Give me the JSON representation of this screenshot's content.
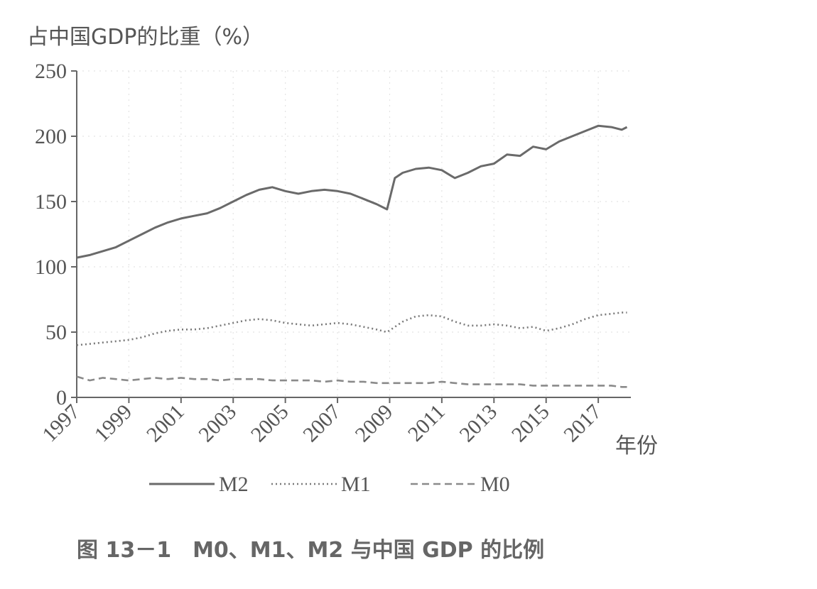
{
  "chart_data": {
    "type": "line",
    "ylabel": "占中国GDP的比重（%）",
    "xlabel": "年份",
    "caption": "图 13－1　M0、M1、M2 与中国 GDP 的比例",
    "x_range": [
      1997,
      2018.25
    ],
    "y_range": [
      0,
      250
    ],
    "y_ticks": [
      0,
      50,
      100,
      150,
      200,
      250
    ],
    "x_ticks": [
      1997,
      1999,
      2001,
      2003,
      2005,
      2007,
      2009,
      2011,
      2013,
      2015,
      2017
    ],
    "grid": true,
    "legend_position": "bottom",
    "series": [
      {
        "name": "M2",
        "style": "solid",
        "color": "#6a6a6a",
        "x": [
          1997.0,
          1997.5,
          1998.0,
          1998.5,
          1999.0,
          1999.5,
          2000.0,
          2000.5,
          2001.0,
          2001.5,
          2002.0,
          2002.5,
          2003.0,
          2003.5,
          2004.0,
          2004.5,
          2005.0,
          2005.5,
          2006.0,
          2006.5,
          2007.0,
          2007.5,
          2008.0,
          2008.5,
          2008.9,
          2009.2,
          2009.5,
          2010.0,
          2010.5,
          2011.0,
          2011.5,
          2012.0,
          2012.5,
          2013.0,
          2013.5,
          2014.0,
          2014.5,
          2015.0,
          2015.5,
          2016.0,
          2016.5,
          2017.0,
          2017.5,
          2017.9,
          2018.1
        ],
        "values": [
          107,
          109,
          112,
          115,
          120,
          125,
          130,
          134,
          137,
          139,
          141,
          145,
          150,
          155,
          159,
          161,
          158,
          156,
          158,
          159,
          158,
          156,
          152,
          148,
          144,
          168,
          172,
          175,
          176,
          174,
          168,
          172,
          177,
          179,
          186,
          185,
          192,
          190,
          196,
          200,
          204,
          208,
          207,
          205,
          207
        ]
      },
      {
        "name": "M1",
        "style": "dotted",
        "color": "#7a7a7a",
        "x": [
          1997.0,
          1997.5,
          1998.0,
          1998.5,
          1999.0,
          1999.5,
          2000.0,
          2000.5,
          2001.0,
          2001.5,
          2002.0,
          2002.5,
          2003.0,
          2003.5,
          2004.0,
          2004.5,
          2005.0,
          2005.5,
          2006.0,
          2006.5,
          2007.0,
          2007.5,
          2008.0,
          2008.5,
          2008.9,
          2009.5,
          2010.0,
          2010.5,
          2011.0,
          2011.5,
          2012.0,
          2012.5,
          2013.0,
          2013.5,
          2014.0,
          2014.5,
          2015.0,
          2015.5,
          2016.0,
          2016.5,
          2017.0,
          2017.5,
          2017.9,
          2018.1
        ],
        "values": [
          40,
          41,
          42,
          43,
          44,
          46,
          49,
          51,
          52,
          52,
          53,
          55,
          57,
          59,
          60,
          59,
          57,
          56,
          55,
          56,
          57,
          56,
          54,
          52,
          50,
          58,
          62,
          63,
          62,
          58,
          55,
          55,
          56,
          55,
          53,
          54,
          51,
          53,
          56,
          60,
          63,
          64,
          65,
          65
        ]
      },
      {
        "name": "M0",
        "style": "dashed",
        "color": "#8a8a8a",
        "x": [
          1997.0,
          1997.5,
          1998.0,
          1998.5,
          1999.0,
          1999.5,
          2000.0,
          2000.5,
          2001.0,
          2001.5,
          2002.0,
          2002.5,
          2003.0,
          2003.5,
          2004.0,
          2004.5,
          2005.0,
          2005.5,
          2006.0,
          2006.5,
          2007.0,
          2007.5,
          2008.0,
          2008.5,
          2009.0,
          2009.5,
          2010.0,
          2010.5,
          2011.0,
          2011.5,
          2012.0,
          2012.5,
          2013.0,
          2013.5,
          2014.0,
          2014.5,
          2015.0,
          2015.5,
          2016.0,
          2016.5,
          2017.0,
          2017.5,
          2017.9,
          2018.1
        ],
        "values": [
          16,
          13,
          15,
          14,
          13,
          14,
          15,
          14,
          15,
          14,
          14,
          13,
          14,
          14,
          14,
          13,
          13,
          13,
          13,
          12,
          13,
          12,
          12,
          11,
          11,
          11,
          11,
          11,
          12,
          11,
          10,
          10,
          10,
          10,
          10,
          9,
          9,
          9,
          9,
          9,
          9,
          9,
          8,
          8
        ]
      }
    ]
  }
}
